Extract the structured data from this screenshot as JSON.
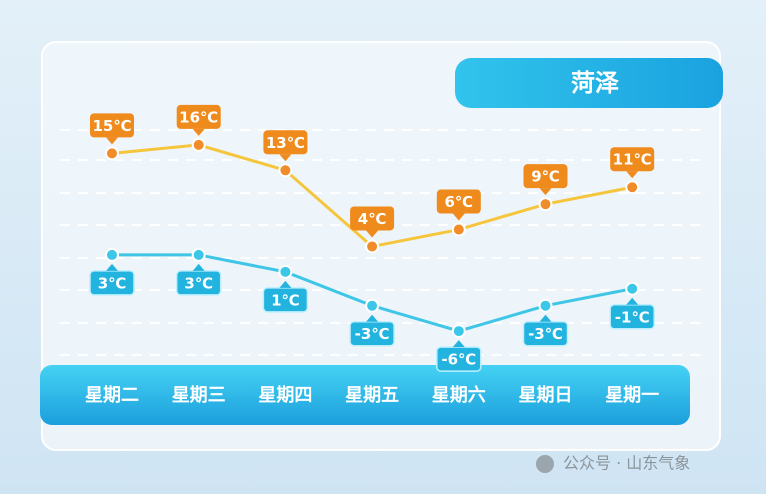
{
  "chart_data": {
    "type": "line",
    "title": "菏泽",
    "categories": [
      "星期二",
      "星期三",
      "星期四",
      "星期五",
      "星期六",
      "星期日",
      "星期一"
    ],
    "series": [
      {
        "color": "#f5c53c",
        "values": [
          15,
          16,
          13,
          4,
          6,
          9,
          11
        ],
        "value_labels": [
          "15℃",
          "16℃",
          "13℃",
          "4℃",
          "6℃",
          "9℃",
          "11℃"
        ]
      },
      {
        "color": "#3fc6e6",
        "values": [
          3,
          3,
          1,
          -3,
          -6,
          -3,
          -1
        ],
        "value_labels": [
          "3℃",
          "3℃",
          "1℃",
          "-3℃",
          "-6℃",
          "-3℃",
          "-1℃"
        ]
      }
    ],
    "ylim": [
      -8,
      18
    ],
    "watermark": "公众号 · 山东气象"
  }
}
